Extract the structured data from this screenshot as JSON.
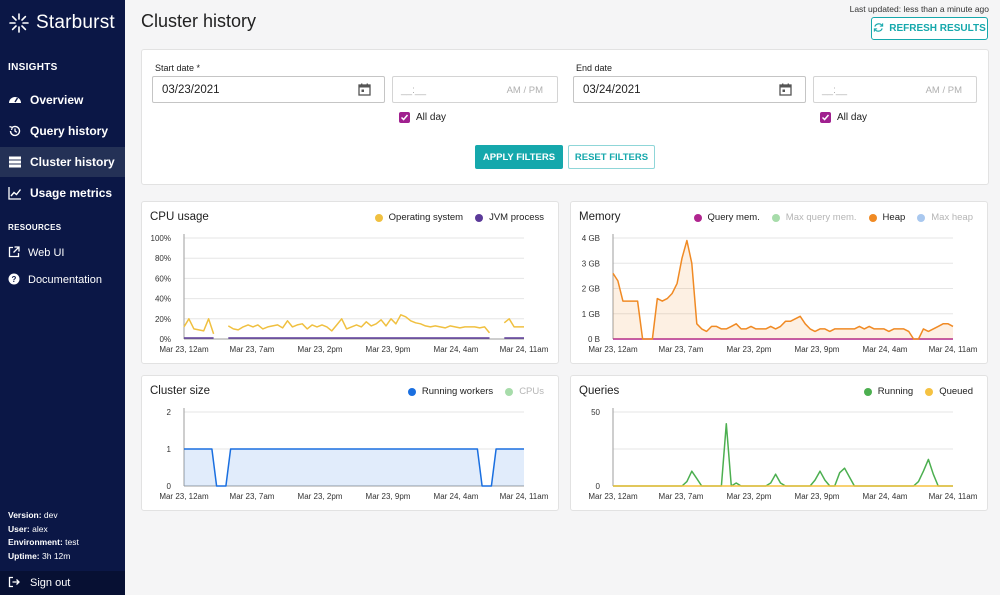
{
  "brand": {
    "name": "Starburst"
  },
  "sidebar": {
    "insights_title": "INSIGHTS",
    "items": [
      {
        "label": "Overview",
        "icon": "speedometer-icon"
      },
      {
        "label": "Query history",
        "icon": "history-icon"
      },
      {
        "label": "Cluster history",
        "icon": "server-icon",
        "active": true
      },
      {
        "label": "Usage metrics",
        "icon": "trend-icon"
      }
    ],
    "resources_title": "RESOURCES",
    "resources": [
      {
        "label": "Web UI",
        "icon": "external-link-icon"
      },
      {
        "label": "Documentation",
        "icon": "help-icon"
      }
    ],
    "meta": {
      "version_key": "Version:",
      "version": "dev",
      "user_key": "User:",
      "user": "alex",
      "environment_key": "Environment:",
      "environment": "test",
      "uptime_key": "Uptime:",
      "uptime": "3h 12m"
    },
    "sign_out": "Sign out"
  },
  "header": {
    "title": "Cluster history",
    "last_updated": "Last updated: less than a minute ago",
    "refresh_label": "REFRESH RESULTS"
  },
  "filters": {
    "start_label": "Start date *",
    "start_value": "03/23/2021",
    "end_label": "End date",
    "end_value": "03/24/2021",
    "time_placeholder": "__:__",
    "ampm": "AM / PM",
    "all_day_label": "All day",
    "apply_label": "APPLY FILTERS",
    "reset_label": "RESET FILTERS"
  },
  "colors": {
    "accent": "#15a8ac",
    "sidebar_bg": "#0b1746",
    "checkbox": "#a0208f"
  },
  "chart_data": [
    {
      "id": "cpu",
      "type": "area",
      "title": "CPU usage",
      "x_ticks": [
        "Mar 23, 12am",
        "Mar 23, 7am",
        "Mar 23, 2pm",
        "Mar 23, 9pm",
        "Mar 24, 4am",
        "Mar 24, 11am"
      ],
      "y_ticks": [
        "100%",
        "80%",
        "60%",
        "40%",
        "20%",
        "0%"
      ],
      "ylim": [
        0,
        100
      ],
      "series": [
        {
          "name": "Operating system",
          "color": "#f0c040",
          "faded": false,
          "fill": false,
          "values": [
            12,
            20,
            10,
            9,
            8,
            20,
            5,
            null,
            null,
            13,
            10,
            9,
            12,
            14,
            12,
            14,
            10,
            12,
            13,
            14,
            11,
            18,
            12,
            14,
            15,
            10,
            14,
            12,
            14,
            12,
            8,
            14,
            20,
            10,
            12,
            14,
            12,
            17,
            13,
            15,
            19,
            13,
            20,
            15,
            24,
            22,
            18,
            16,
            15,
            13,
            12,
            13,
            12,
            11,
            13,
            12,
            11,
            12,
            12,
            12,
            11,
            12,
            6,
            null,
            null,
            16,
            20,
            12,
            12,
            12
          ]
        },
        {
          "name": "JVM process",
          "color": "#5b3a99",
          "faded": false,
          "fill": false,
          "values": [
            1,
            1,
            1,
            1,
            1,
            1,
            1,
            null,
            null,
            1,
            1,
            1,
            1,
            1,
            1,
            1,
            1,
            1,
            1,
            1,
            1,
            1,
            1,
            1,
            1,
            1,
            1,
            1,
            1,
            1,
            1,
            1,
            1,
            1,
            1,
            1,
            1,
            1,
            1,
            1,
            1,
            1,
            1,
            1,
            1,
            1,
            1,
            1,
            1,
            1,
            1,
            1,
            1,
            1,
            1,
            1,
            1,
            1,
            1,
            1,
            1,
            1,
            1,
            null,
            null,
            1,
            1,
            1,
            1,
            1
          ]
        }
      ]
    },
    {
      "id": "memory",
      "type": "area",
      "title": "Memory",
      "x_ticks": [
        "Mar 23, 12am",
        "Mar 23, 7am",
        "Mar 23, 2pm",
        "Mar 23, 9pm",
        "Mar 24, 4am",
        "Mar 24, 11am"
      ],
      "y_ticks": [
        "4 GB",
        "3 GB",
        "2 GB",
        "1 GB",
        "0 B"
      ],
      "ylim": [
        0,
        4
      ],
      "series": [
        {
          "name": "Query mem.",
          "color": "#b0258f",
          "faded": false,
          "fill": false,
          "values": [
            0,
            0,
            0,
            0,
            0,
            0,
            0,
            0,
            0,
            0,
            0,
            0,
            0,
            0,
            0,
            0,
            0,
            0,
            0,
            0,
            0,
            0,
            0,
            0,
            0,
            0,
            0,
            0,
            0,
            0,
            0,
            0,
            0,
            0,
            0,
            0,
            0,
            0,
            0,
            0,
            0,
            0,
            0,
            0,
            0,
            0,
            0,
            0,
            0,
            0,
            0,
            0,
            0,
            0,
            0,
            0,
            0,
            0,
            0,
            0,
            0,
            0,
            0,
            0,
            0,
            0,
            0,
            0,
            0,
            0
          ]
        },
        {
          "name": "Max query mem.",
          "color": "#a7dcaa",
          "faded": true,
          "fill": false,
          "values": []
        },
        {
          "name": "Heap",
          "color": "#f08a24",
          "faded": false,
          "fill": true,
          "values": [
            2.6,
            2.3,
            1.5,
            1.5,
            1.5,
            1.5,
            0,
            0,
            0,
            1.6,
            1.5,
            1.6,
            1.8,
            2.2,
            3.2,
            3.9,
            3.0,
            0.6,
            0.4,
            0.3,
            0.5,
            0.5,
            0.4,
            0.4,
            0.5,
            0.6,
            0.4,
            0.4,
            0.5,
            0.4,
            0.4,
            0.4,
            0.5,
            0.4,
            0.5,
            0.7,
            0.7,
            0.8,
            0.9,
            0.6,
            0.4,
            0.3,
            0.4,
            0.4,
            0.3,
            0.4,
            0.4,
            0.4,
            0.4,
            0.4,
            0.5,
            0.4,
            0.5,
            0.4,
            0.4,
            0.4,
            0.3,
            0.4,
            0.4,
            0.4,
            0.3,
            0,
            0,
            0.4,
            0.3,
            0.4,
            0.5,
            0.6,
            0.6,
            0.5
          ]
        },
        {
          "name": "Max heap",
          "color": "#a9c8ef",
          "faded": true,
          "fill": false,
          "values": []
        }
      ]
    },
    {
      "id": "cluster_size",
      "type": "area",
      "title": "Cluster size",
      "x_ticks": [
        "Mar 23, 12am",
        "Mar 23, 7am",
        "Mar 23, 2pm",
        "Mar 23, 9pm",
        "Mar 24, 4am",
        "Mar 24, 11am"
      ],
      "y_ticks": [
        "2",
        "1",
        "0"
      ],
      "ylim": [
        0,
        2
      ],
      "series": [
        {
          "name": "Running workers",
          "color": "#1a6fe0",
          "faded": false,
          "fill": true,
          "values": [
            1,
            1,
            1,
            1,
            1,
            1,
            1,
            0,
            0,
            0,
            1,
            1,
            1,
            1,
            1,
            1,
            1,
            1,
            1,
            1,
            1,
            1,
            1,
            1,
            1,
            1,
            1,
            1,
            1,
            1,
            1,
            1,
            1,
            1,
            1,
            1,
            1,
            1,
            1,
            1,
            1,
            1,
            1,
            1,
            1,
            1,
            1,
            1,
            1,
            1,
            1,
            1,
            1,
            1,
            1,
            1,
            1,
            1,
            1,
            1,
            1,
            1,
            1,
            1,
            0,
            0,
            0,
            1,
            1,
            1,
            1,
            1,
            1,
            1
          ]
        },
        {
          "name": "CPUs",
          "color": "#a7dcaa",
          "faded": true,
          "fill": false,
          "values": []
        }
      ]
    },
    {
      "id": "queries",
      "type": "line",
      "title": "Queries",
      "x_ticks": [
        "Mar 23, 12am",
        "Mar 23, 7am",
        "Mar 23, 2pm",
        "Mar 23, 9pm",
        "Mar 24, 4am",
        "Mar 24, 11am"
      ],
      "y_ticks": [
        "50",
        "",
        "0"
      ],
      "ylim": [
        0,
        50
      ],
      "series": [
        {
          "name": "Running",
          "color": "#4caf50",
          "faded": false,
          "fill": false,
          "values": [
            0,
            0,
            0,
            0,
            0,
            0,
            0,
            0,
            0,
            0,
            0,
            0,
            0,
            0,
            0,
            3,
            10,
            5,
            0,
            0,
            0,
            0,
            0,
            42,
            0,
            2,
            0,
            0,
            0,
            0,
            0,
            0,
            2,
            8,
            2,
            0,
            0,
            0,
            0,
            0,
            0,
            4,
            10,
            4,
            0,
            0,
            9,
            12,
            6,
            0,
            0,
            0,
            0,
            0,
            0,
            0,
            0,
            0,
            0,
            0,
            0,
            0,
            3,
            10,
            18,
            8,
            0,
            0,
            0,
            0
          ]
        },
        {
          "name": "Queued",
          "color": "#f5c242",
          "faded": false,
          "fill": false,
          "values": [
            0,
            0,
            0,
            0,
            0,
            0,
            0,
            0,
            0,
            0,
            0,
            0,
            0,
            0,
            0,
            0,
            0,
            0,
            0,
            0,
            0,
            0,
            0,
            0,
            0,
            0,
            0,
            0,
            0,
            0,
            0,
            0,
            0,
            0,
            0,
            0,
            0,
            0,
            0,
            0,
            0,
            0,
            0,
            0,
            0,
            0,
            0,
            0,
            0,
            0,
            0,
            0,
            0,
            0,
            0,
            0,
            0,
            0,
            0,
            0,
            0,
            0,
            0,
            0,
            0,
            0,
            0,
            0,
            0,
            0
          ]
        }
      ]
    }
  ]
}
